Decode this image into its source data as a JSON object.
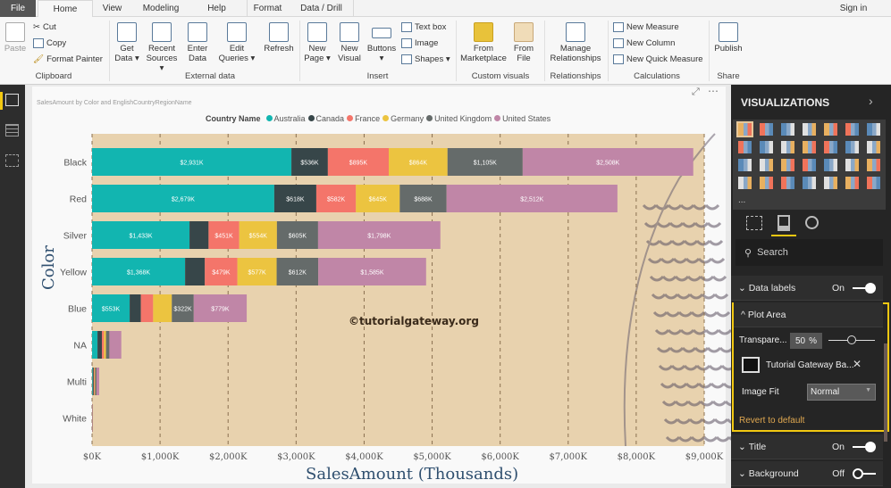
{
  "tabs": [
    "File",
    "Home",
    "View",
    "Modeling",
    "Help",
    "Format",
    "Data / Drill"
  ],
  "sign_in": "Sign in",
  "ribbon": {
    "clipboard": {
      "paste": "Paste",
      "cut": "Cut",
      "copy": "Copy",
      "format_painter": "Format Painter",
      "group": "Clipboard"
    },
    "external": {
      "get_data": "Get Data ▾",
      "recent": "Recent Sources ▾",
      "enter": "Enter Data",
      "edit": "Edit Queries ▾",
      "refresh": "Refresh",
      "group": "External data"
    },
    "insert": {
      "new_page": "New Page ▾",
      "new_visual": "New Visual",
      "buttons": "Buttons ▾",
      "text_box": "Text box",
      "image": "Image",
      "shapes": "Shapes ▾",
      "group": "Insert"
    },
    "custom": {
      "marketplace": "From Marketplace",
      "file": "From File",
      "group": "Custom visuals"
    },
    "rel": {
      "manage": "Manage Relationships",
      "group": "Relationships"
    },
    "calc": {
      "measure": "New Measure",
      "column": "New Column",
      "quick": "New Quick Measure",
      "group": "Calculations"
    },
    "share": {
      "publish": "Publish",
      "group": "Share"
    }
  },
  "watermark": "©tutorialgateway.org",
  "chart_data": {
    "type": "bar",
    "orientation": "horizontal-stacked",
    "title": "SalesAmount by Color and EnglishCountryRegionName",
    "legend_title": "Country Name",
    "legend_position": "top-right",
    "xlabel": "SalesAmount (Thousands)",
    "ylabel": "Color",
    "xlim": [
      0,
      9000
    ],
    "xticks": [
      "$0K",
      "$1,000K",
      "$2,000K",
      "$3,000K",
      "$4,000K",
      "$5,000K",
      "$6,000K",
      "$7,000K",
      "$8,000K",
      "$9,000K"
    ],
    "categories": [
      "Black",
      "Red",
      "Silver",
      "Yellow",
      "Blue",
      "NA",
      "Multi",
      "White"
    ],
    "series": [
      {
        "name": "Australia",
        "color": "#12b5b0",
        "values": [
          2931,
          2679,
          1433,
          1368,
          553,
          80,
          10,
          2
        ],
        "labels": [
          "$2,931K",
          "$2,679K",
          "$1,433K",
          "$1,368K",
          "$553K",
          null,
          null,
          null
        ]
      },
      {
        "name": "Canada",
        "color": "#374649",
        "values": [
          536,
          618,
          280,
          290,
          165,
          65,
          15,
          1
        ],
        "labels": [
          "$536K",
          "$618K",
          null,
          null,
          null,
          null,
          null,
          null
        ]
      },
      {
        "name": "France",
        "color": "#f4756a",
        "values": [
          895,
          582,
          451,
          479,
          180,
          30,
          10,
          1
        ],
        "labels": [
          "$895K",
          "$582K",
          "$451K",
          "$479K",
          null,
          null,
          null,
          null
        ]
      },
      {
        "name": "Germany",
        "color": "#ecc440",
        "values": [
          864,
          645,
          554,
          577,
          275,
          30,
          10,
          1
        ],
        "labels": [
          "$864K",
          "$645K",
          "$554K",
          "$577K",
          null,
          null,
          null,
          null
        ]
      },
      {
        "name": "United Kingdom",
        "color": "#656b6a",
        "values": [
          1105,
          688,
          605,
          612,
          322,
          50,
          20,
          1
        ],
        "labels": [
          "$1,105K",
          "$688K",
          "$605K",
          "$612K",
          "$322K",
          null,
          null,
          null
        ]
      },
      {
        "name": "United States",
        "color": "#c086a7",
        "values": [
          2508,
          2512,
          1798,
          1585,
          779,
          175,
          40,
          3
        ],
        "labels": [
          "$2,508K",
          "$2,512K",
          "$1,798K",
          "$1,585K",
          "$779K",
          null,
          null,
          null
        ]
      }
    ]
  },
  "viz": {
    "header": "VISUALIZATIONS",
    "more": "...",
    "search_placeholder": "Search",
    "data_labels": {
      "label": "Data labels",
      "state": "On"
    },
    "plot_area": {
      "label": "Plot Area",
      "transparency_label": "Transpare...",
      "transparency_value": "50",
      "transparency_unit": "%",
      "transparency_percent": 50,
      "image_name": "Tutorial Gateway Ba...",
      "image_fit_label": "Image Fit",
      "image_fit_value": "Normal",
      "revert": "Revert to default"
    },
    "title": {
      "label": "Title",
      "state": "On"
    },
    "background": {
      "label": "Background",
      "state": "Off"
    }
  }
}
